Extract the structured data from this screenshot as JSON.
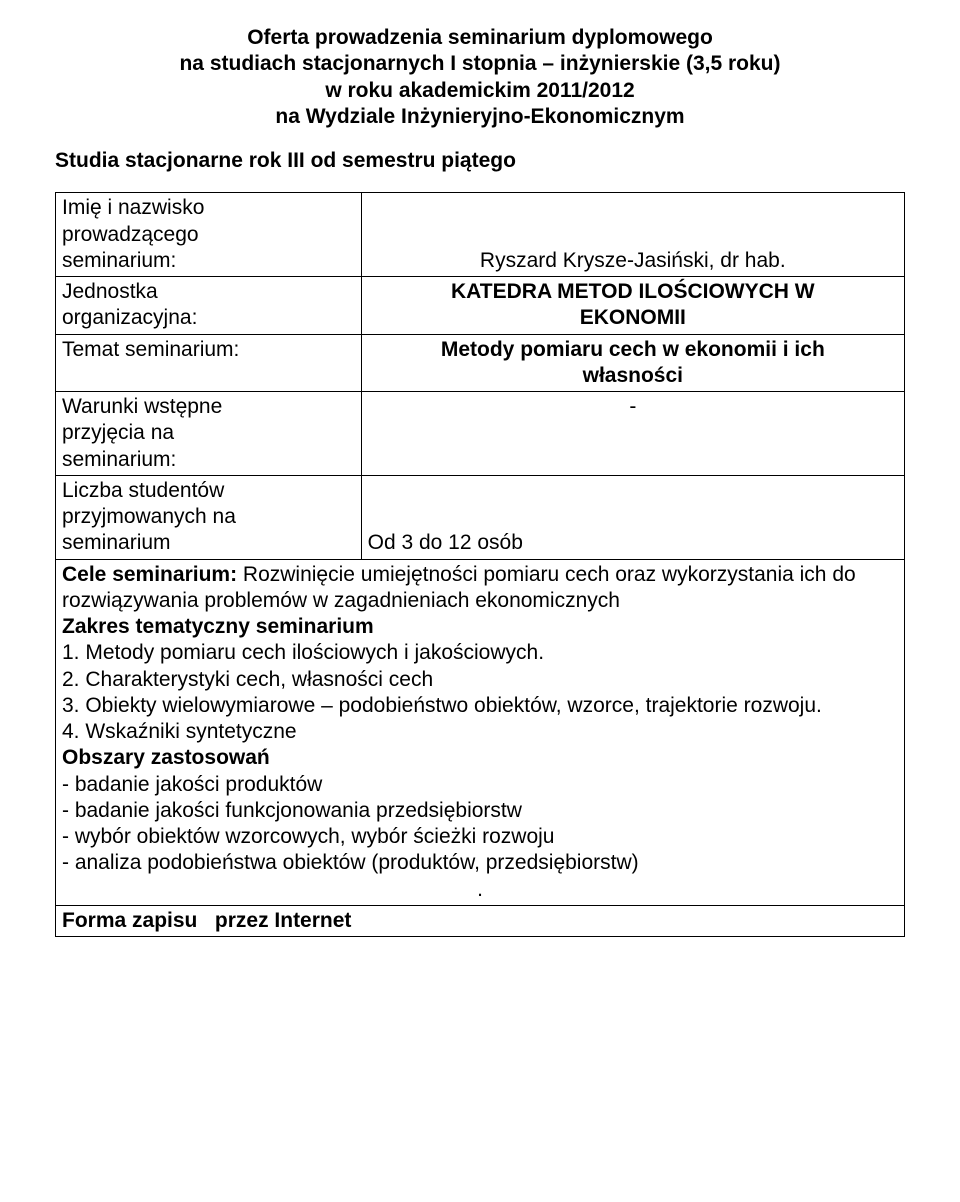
{
  "header": {
    "line1": "Oferta prowadzenia seminarium dyplomowego",
    "line2": "na studiach stacjonarnych I stopnia – inżynierskie (3,5 roku)",
    "line3": "w roku akademickim 2011/2012",
    "line4": "na Wydziale Inżynieryjno-Ekonomicznym"
  },
  "subheader": "Studia stacjonarne rok III od semestru piątego",
  "rows": {
    "r1_label_l1": "Imię i nazwisko",
    "r1_label_l2": "prowadzącego",
    "r1_label_l3": "seminarium:",
    "r1_value": "Ryszard Krysze-Jasiński, dr hab.",
    "r2_label_l1": "Jednostka",
    "r2_label_l2": "organizacyjna:",
    "r2_value_l1": "KATEDRA METOD ILOŚCIOWYCH W",
    "r2_value_l2": "EKONOMII",
    "r3_label": "Temat seminarium:",
    "r3_value_l1": "Metody pomiaru cech w ekonomii i ich",
    "r3_value_l2": "własności",
    "r4_label_l1": "Warunki wstępne",
    "r4_label_l2": "przyjęcia na",
    "r4_label_l3": "seminarium:",
    "r4_value": "-",
    "r5_label_l1": "Liczba studentów",
    "r5_label_l2": "przyjmowanych na",
    "r5_label_l3": "seminarium",
    "r5_value": "Od 3 do 12 osób"
  },
  "cele": {
    "lead_bold": "Cele seminarium:",
    "lead_rest": " Rozwinięcie umiejętności pomiaru cech oraz wykorzystania ich do rozwiązywania problemów w zagadnieniach ekonomicznych",
    "zakres_heading": "Zakres tematyczny seminarium",
    "item1": "1. Metody pomiaru cech ilościowych i jakościowych.",
    "item2": "2. Charakterystyki cech, własności cech",
    "item3": "3. Obiekty wielowymiarowe – podobieństwo obiektów, wzorce, trajektorie rozwoju.",
    "item4": "4. Wskaźniki syntetyczne",
    "obszary_heading": "Obszary zastosowań",
    "ob1": "- badanie jakości produktów",
    "ob2": "- badanie jakości funkcjonowania przedsiębiorstw",
    "ob3": "- wybór obiektów wzorcowych, wybór ścieżki rozwoju",
    "ob4": "- analiza podobieństwa obiektów (produktów, przedsiębiorstw)",
    "dot": "."
  },
  "forma": {
    "label": "Forma zapisu",
    "value": "przez Internet"
  }
}
